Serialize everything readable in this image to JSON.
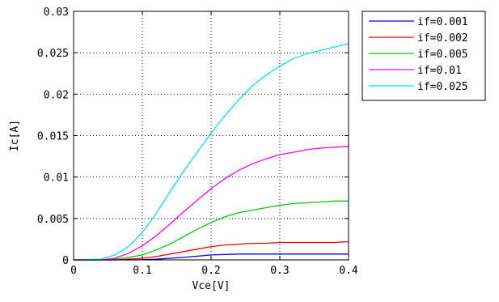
{
  "chart_data": {
    "type": "line",
    "xlabel": "Vce[V]",
    "ylabel": "Ic[A]",
    "xlim": [
      0,
      0.4
    ],
    "ylim": [
      0,
      0.03
    ],
    "xticks": [
      0,
      0.1,
      0.2,
      0.3,
      0.4
    ],
    "xtick_labels": [
      "0",
      "0.1",
      "0.2",
      "0.3",
      "0.4"
    ],
    "yticks": [
      0,
      0.005,
      0.01,
      0.015,
      0.02,
      0.025,
      0.03
    ],
    "ytick_labels": [
      "0",
      "0.005",
      "0.01",
      "0.015",
      "0.02",
      "0.025",
      "0.03"
    ],
    "grid": true,
    "legend_position": "outside-right-top",
    "x": [
      0.0,
      0.04,
      0.06,
      0.08,
      0.1,
      0.12,
      0.14,
      0.16,
      0.18,
      0.2,
      0.22,
      0.24,
      0.26,
      0.28,
      0.3,
      0.32,
      0.34,
      0.36,
      0.38,
      0.4
    ],
    "series": [
      {
        "name": "if=0.001",
        "color": "#0000ff",
        "values": [
          0.0,
          0.0,
          0.0,
          0.0,
          2e-05,
          8e-05,
          0.0002,
          0.0003,
          0.00045,
          0.0006,
          0.00065,
          0.0007,
          0.0007,
          0.0007,
          0.0007,
          0.0007,
          0.0007,
          0.0007,
          0.0007,
          0.0007
        ]
      },
      {
        "name": "if=0.002",
        "color": "#ff0000",
        "values": [
          0.0,
          0.0,
          0.0,
          0.0001,
          0.0002,
          0.0004,
          0.0007,
          0.001,
          0.0013,
          0.0016,
          0.0018,
          0.0019,
          0.002,
          0.002,
          0.0021,
          0.0021,
          0.0021,
          0.0021,
          0.0021,
          0.0022
        ]
      },
      {
        "name": "if=0.005",
        "color": "#00cc00",
        "values": [
          0.0,
          0.0,
          0.0001,
          0.0003,
          0.0006,
          0.0012,
          0.0019,
          0.0028,
          0.0037,
          0.0045,
          0.0052,
          0.0057,
          0.006,
          0.0063,
          0.0066,
          0.0068,
          0.0069,
          0.007,
          0.0071,
          0.0071
        ]
      },
      {
        "name": "if=0.01",
        "color": "#ff00ff",
        "values": [
          0.0,
          0.0,
          0.0002,
          0.0008,
          0.0017,
          0.0029,
          0.0043,
          0.0058,
          0.0072,
          0.0086,
          0.0098,
          0.0108,
          0.0116,
          0.0122,
          0.0127,
          0.013,
          0.0133,
          0.0135,
          0.0136,
          0.0137
        ]
      },
      {
        "name": "if=0.025",
        "color": "#00e5e5",
        "values": [
          0.0,
          0.0001,
          0.0006,
          0.0016,
          0.0033,
          0.0056,
          0.0082,
          0.0107,
          0.013,
          0.0153,
          0.0174,
          0.0193,
          0.021,
          0.0223,
          0.0234,
          0.0243,
          0.0249,
          0.0253,
          0.0257,
          0.0261
        ]
      }
    ]
  }
}
